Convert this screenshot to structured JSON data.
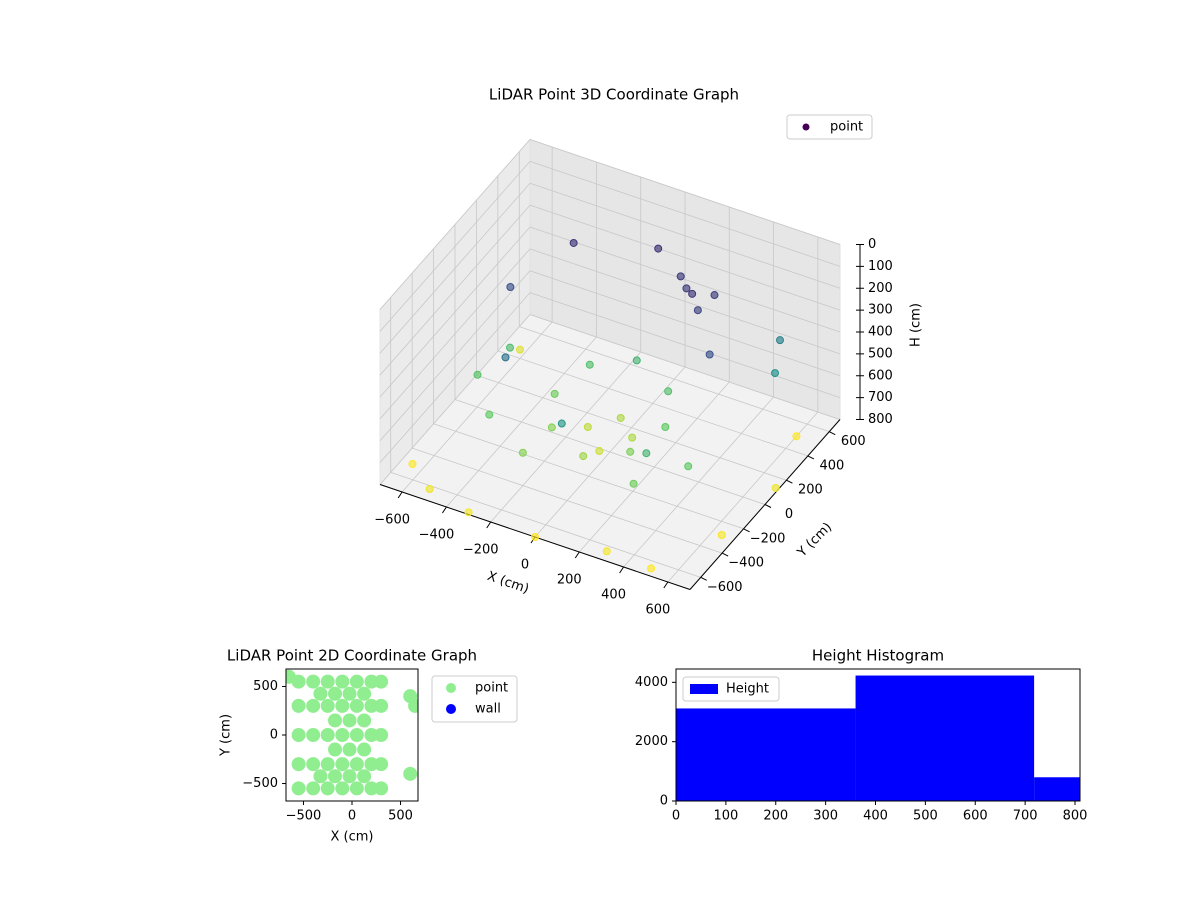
{
  "chart_data": [
    {
      "type": "scatter3d",
      "title": "LiDAR Point 3D Coordinate Graph",
      "xlabel": "X (cm)",
      "ylabel": "Y (cm)",
      "zlabel": "H (cm)",
      "xlim": [
        -700,
        700
      ],
      "ylim": [
        -700,
        700
      ],
      "zlim": [
        0,
        800
      ],
      "zinvert": true,
      "colormap": "viridis",
      "xticks": [
        {
          "value": -600,
          "label": "−600"
        },
        {
          "value": -400,
          "label": "−400"
        },
        {
          "value": -200,
          "label": "−200"
        },
        0,
        200,
        400,
        600
      ],
      "yticks": [
        {
          "value": -600,
          "label": "−600"
        },
        {
          "value": -400,
          "label": "−400"
        },
        {
          "value": -200,
          "label": "−200"
        },
        0,
        200,
        400,
        600
      ],
      "zticks": [
        0,
        100,
        200,
        300,
        400,
        500,
        600,
        700,
        800
      ],
      "legend": "upper right",
      "series": [
        {
          "name": "point",
          "color": "#440154",
          "x": [
            450,
            318,
            0,
            -318,
            -450,
            -318,
            0,
            318,
            250,
            177,
            0,
            -177,
            -250,
            -177,
            0,
            177,
            100,
            0,
            -100,
            0,
            200,
            250,
            150,
            300,
            -650,
            -500,
            500,
            650,
            600,
            -600,
            -300,
            0,
            300,
            700,
            -400,
            -200,
            300,
            450,
            600,
            550,
            -500,
            -550
          ],
          "y": [
            0,
            318,
            450,
            318,
            0,
            -318,
            -450,
            -318,
            0,
            177,
            250,
            177,
            0,
            -177,
            -250,
            -177,
            0,
            100,
            0,
            -100,
            300,
            250,
            350,
            200,
            -500,
            -650,
            -650,
            -300,
            500,
            400,
            -700,
            -700,
            -650,
            100,
            -300,
            -400,
            -400,
            -200,
            300,
            450,
            100,
            -100
          ],
          "z": [
            200,
            150,
            120,
            130,
            200,
            300,
            420,
            520,
            600,
            560,
            520,
            560,
            620,
            650,
            680,
            640,
            700,
            700,
            720,
            740,
            150,
            130,
            140,
            160,
            800,
            780,
            800,
            790,
            800,
            760,
            790,
            800,
            790,
            780,
            600,
            650,
            620,
            600,
            400,
            350,
            550,
            580
          ]
        }
      ]
    },
    {
      "type": "scatter",
      "title": "LiDAR Point 2D Coordinate Graph",
      "xlabel": "X (cm)",
      "ylabel": "Y (cm)",
      "xlim": [
        -680,
        680
      ],
      "ylim": [
        -680,
        680
      ],
      "xticks": [
        {
          "value": -500,
          "label": "−500"
        },
        0,
        500
      ],
      "yticks": [
        {
          "value": -500,
          "label": "−500"
        },
        0,
        500
      ],
      "legend": "outside right",
      "series": [
        {
          "name": "point",
          "color": "#90ee90",
          "x": [
            -550,
            -400,
            -250,
            -100,
            50,
            200,
            300,
            -550,
            -400,
            -250,
            -100,
            50,
            200,
            300,
            -550,
            -400,
            -250,
            -100,
            50,
            200,
            300,
            -550,
            -400,
            -250,
            -100,
            50,
            200,
            300,
            -550,
            -400,
            -250,
            -100,
            50,
            200,
            300,
            -175,
            -25,
            125,
            -175,
            -25,
            125,
            -175,
            -25,
            125,
            -175,
            -25,
            125,
            -325,
            -325,
            600,
            650,
            600,
            -650
          ],
          "y": [
            -550,
            -550,
            -550,
            -550,
            -550,
            -550,
            -550,
            -300,
            -300,
            -300,
            -300,
            -300,
            -300,
            -300,
            0,
            0,
            0,
            0,
            0,
            0,
            0,
            300,
            300,
            300,
            300,
            300,
            300,
            300,
            550,
            550,
            550,
            550,
            550,
            550,
            550,
            -425,
            -425,
            -425,
            -150,
            -150,
            -150,
            150,
            150,
            150,
            425,
            425,
            425,
            -425,
            425,
            400,
            300,
            -400,
            600
          ]
        },
        {
          "name": "wall",
          "color": "#0000ff",
          "x": [],
          "y": []
        }
      ]
    },
    {
      "type": "histogram",
      "title": "Height Histogram",
      "legend": "upper left",
      "bins": [
        0,
        360,
        718,
        810
      ],
      "values": [
        3120,
        4230,
        800
      ],
      "series_name": "Height",
      "color": "#0000ff",
      "xlim": [
        0,
        810
      ],
      "ylim": [
        0,
        4450
      ],
      "xticks": [
        0,
        100,
        200,
        300,
        400,
        500,
        600,
        700,
        800
      ],
      "yticks": [
        0,
        2000,
        4000
      ]
    }
  ]
}
